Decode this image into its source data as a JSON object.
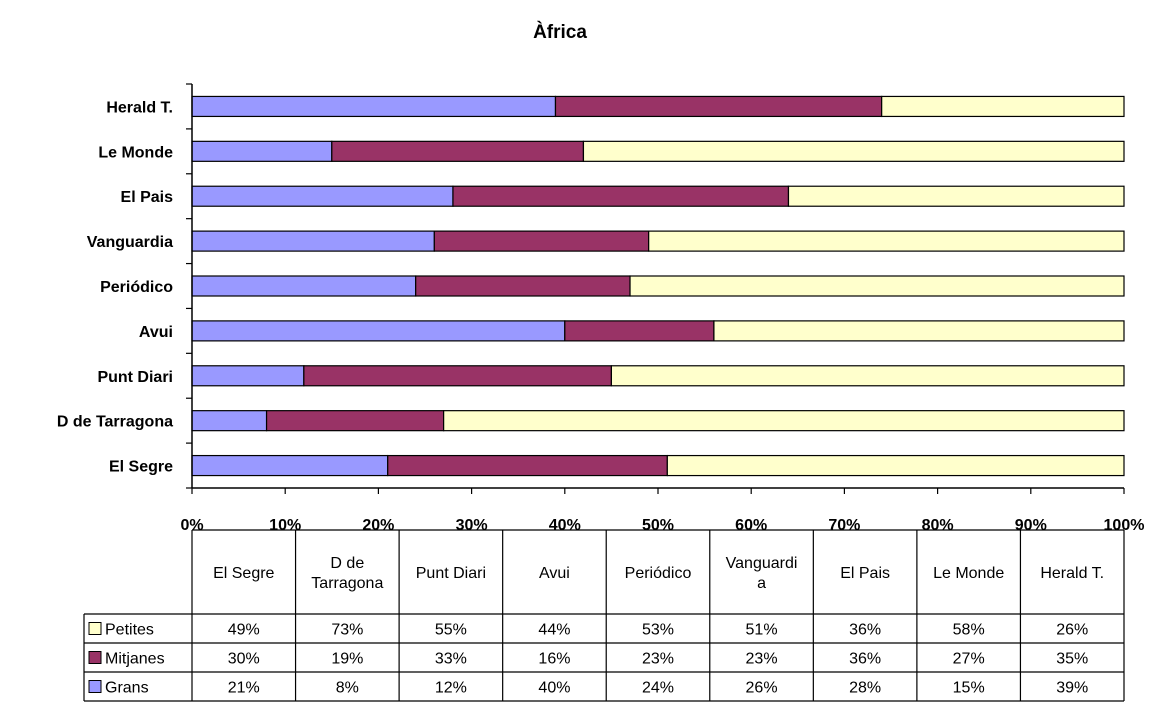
{
  "chart_data": {
    "type": "bar",
    "orientation": "horizontal",
    "stacked": "percent",
    "title": "Àfrica",
    "categories": [
      "El Segre",
      "D de Tarragona",
      "Punt Diari",
      "Avui",
      "Periódico",
      "Vanguardia",
      "El Pais",
      "Le Monde",
      "Herald T."
    ],
    "table_headers": [
      [
        "El Segre"
      ],
      [
        "D de",
        "Tarragona"
      ],
      [
        "Punt Diari"
      ],
      [
        "Avui"
      ],
      [
        "Periódico"
      ],
      [
        "Vanguardi",
        "a"
      ],
      [
        "El Pais"
      ],
      [
        "Le Monde"
      ],
      [
        "Herald T."
      ]
    ],
    "series": [
      {
        "name": "Grans",
        "color": "#9999ff",
        "values": [
          21,
          8,
          12,
          40,
          24,
          26,
          28,
          15,
          39
        ],
        "labels": [
          "21%",
          "8%",
          "12%",
          "40%",
          "24%",
          "26%",
          "28%",
          "15%",
          "39%"
        ]
      },
      {
        "name": "Mitjanes",
        "color": "#993366",
        "values": [
          30,
          19,
          33,
          16,
          23,
          23,
          36,
          27,
          35
        ],
        "labels": [
          "30%",
          "19%",
          "33%",
          "16%",
          "23%",
          "23%",
          "36%",
          "27%",
          "35%"
        ]
      },
      {
        "name": "Petites",
        "color": "#ffffcc",
        "values": [
          49,
          73,
          55,
          44,
          53,
          51,
          36,
          58,
          26
        ],
        "labels": [
          "49%",
          "73%",
          "55%",
          "44%",
          "53%",
          "51%",
          "36%",
          "58%",
          "26%"
        ]
      }
    ],
    "table_row_order": [
      "Petites",
      "Mitjanes",
      "Grans"
    ],
    "xlim": [
      0,
      100
    ],
    "x_ticks": [
      "0%",
      "10%",
      "20%",
      "30%",
      "40%",
      "50%",
      "60%",
      "70%",
      "80%",
      "90%",
      "100%"
    ],
    "grid": false,
    "legend": "data-table"
  }
}
